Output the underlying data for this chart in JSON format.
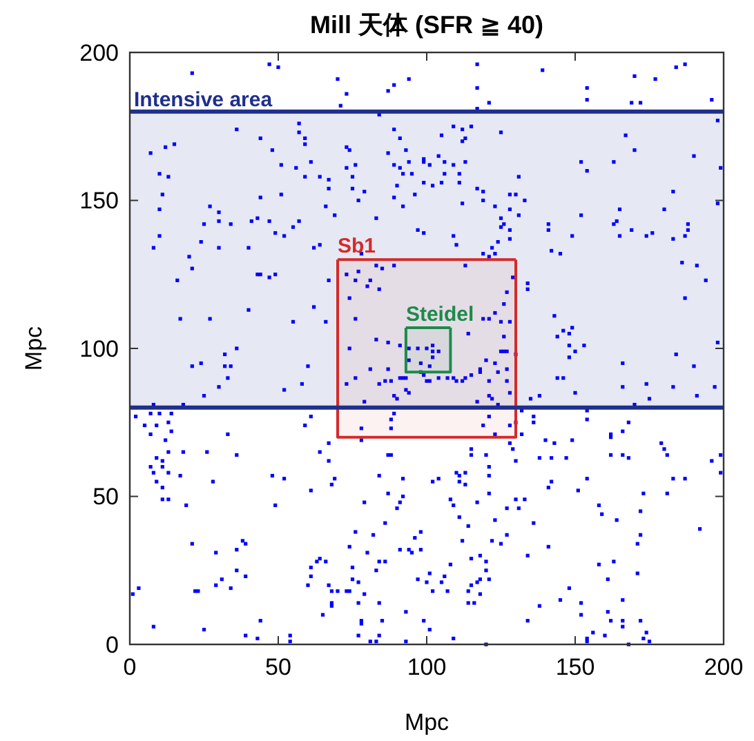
{
  "chart_data": {
    "type": "scatter",
    "title": "Mill 天体  (SFR ≧ 40)",
    "xlabel": "Mpc",
    "ylabel": "Mpc",
    "xlim": [
      0,
      200
    ],
    "ylim": [
      0,
      200
    ],
    "xticks": [
      0,
      50,
      100,
      150,
      200
    ],
    "yticks": [
      0,
      50,
      100,
      150,
      200
    ],
    "marker": "square",
    "line_style": "solid",
    "bands": [
      {
        "axis": "y",
        "from": 80,
        "to": 180,
        "label": "Intensive area",
        "color": "#e6e9f3"
      }
    ],
    "ref_lines": [
      {
        "axis": "y",
        "value": 80,
        "color": "#1f2f8c"
      },
      {
        "axis": "y",
        "value": 180,
        "color": "#1f2f8c"
      }
    ],
    "series": [
      {
        "color": "#0000ff",
        "x": [
          47,
          50,
          21,
          70,
          7,
          12,
          15,
          10,
          13,
          11,
          10,
          8,
          10,
          16,
          17,
          20,
          21,
          24,
          25,
          27,
          30,
          30,
          30,
          34,
          27,
          36,
          44,
          48,
          51,
          40,
          41,
          43,
          44,
          47,
          49,
          51,
          52,
          55,
          57,
          43,
          44,
          47,
          49,
          40,
          55,
          57,
          57,
          59,
          59,
          61,
          56,
          59,
          64,
          67,
          67,
          66,
          69,
          62,
          64,
          62,
          66,
          71,
          73,
          73,
          74,
          73,
          76,
          75,
          75,
          79,
          77,
          83,
          78,
          84,
          87,
          89,
          94,
          89,
          91,
          87,
          93,
          89,
          91,
          94,
          92,
          95,
          90,
          89,
          92,
          96,
          97,
          99,
          73,
          77,
          83,
          89,
          85,
          76,
          80,
          81,
          84,
          74,
          76,
          67,
          117,
          139,
          117,
          121,
          117,
          154,
          154,
          170,
          177,
          184,
          187,
          169,
          172,
          196,
          109,
          112,
          115,
          105,
          113,
          112,
          99,
          104,
          101,
          109,
          113,
          106,
          106,
          111,
          111,
          99,
          102,
          105,
          125,
          117,
          119,
          119,
          112,
          131,
          128,
          130,
          133,
          123,
          128,
          131,
          125,
          126,
          125,
          128,
          128,
          124,
          109,
          110,
          99,
          119,
          122,
          123,
          121,
          113,
          152,
          154,
          163,
          167,
          170,
          190,
          199,
          198,
          152,
          141,
          141,
          149,
          142,
          145,
          165,
          164,
          163,
          169,
          165,
          174,
          176,
          180,
          183,
          188,
          188,
          187,
          183,
          198,
          186,
          191,
          194,
          187,
          129,
          134,
          134,
          127,
          126,
          123,
          119,
          121,
          125,
          128,
          126,
          114,
          143,
          146,
          149,
          148,
          36,
          32,
          24,
          21,
          32,
          34,
          33,
          30,
          25,
          18,
          8,
          2,
          7,
          10,
          14,
          5,
          9,
          13,
          7,
          14,
          12,
          13,
          9,
          11,
          11,
          7,
          8,
          13,
          9,
          11,
          11,
          13,
          17,
          18,
          26,
          33,
          36,
          28,
          19,
          21,
          29,
          38,
          39,
          36,
          36,
          39,
          31,
          29,
          34,
          22,
          23,
          3,
          1,
          8,
          25,
          39,
          43,
          44,
          54,
          54,
          48,
          52,
          49,
          52,
          58,
          60,
          59,
          61,
          64,
          67,
          67,
          69,
          68,
          61,
          78,
          78,
          79,
          73,
          76,
          74,
          81,
          84,
          87,
          86,
          88,
          89,
          90,
          93,
          94,
          89,
          88,
          88,
          87,
          88,
          92,
          92,
          84,
          87,
          79,
          91,
          90,
          86,
          82,
          76,
          74,
          80,
          75,
          84,
          86,
          83,
          75,
          77,
          74,
          73,
          70,
          68,
          67,
          66,
          64,
          61,
          61,
          60,
          63,
          68,
          68,
          65,
          79,
          77,
          84,
          85,
          78,
          78,
          77,
          81,
          84,
          83,
          93,
          93,
          91,
          94,
          95,
          98,
          96,
          98,
          97,
          100,
          99,
          83,
          87,
          91,
          94,
          97,
          94,
          98,
          98,
          100,
          99,
          93,
          92,
          91,
          102,
          100,
          102,
          104,
          102,
          101,
          101,
          104,
          107,
          109,
          110,
          112,
          113,
          115,
          118,
          118,
          120,
          123,
          124,
          127,
          125,
          126,
          127,
          130,
          121,
          127,
          128,
          121,
          122,
          117,
          124,
          135,
          138,
          144,
          146,
          148,
          153,
          150,
          148,
          144,
          150,
          166,
          166,
          174,
          175,
          170,
          183,
          184,
          190,
          191,
          197,
          198,
          121,
          119,
          123,
          128,
          130,
          132,
          132,
          136,
          136,
          154,
          154,
          168,
          162,
          166,
          162,
          162,
          166,
          168,
          179,
          180,
          181,
          196,
          199,
          199,
          187,
          183,
          181,
          173,
          172,
          158,
          159,
          164,
          151,
          154,
          140,
          143,
          138,
          142,
          147,
          149,
          141,
          142,
          115,
          115,
          120,
          121,
          121,
          128,
          129,
          130,
          110,
          111,
          113,
          111,
          113,
          102,
          104,
          108,
          109,
          111,
          117,
          121,
          130,
          133,
          131,
          127,
          123,
          114,
          136,
          127,
          122,
          125,
          112,
          134,
          141,
          118,
          115,
          120,
          120,
          108,
          106,
          101,
          105,
          102,
          107,
          115,
          117,
          118,
          121,
          114,
          118,
          116,
          114,
          134,
          138,
          145,
          148,
          152,
          152,
          156,
          154,
          154,
          160,
          161,
          162,
          166,
          166,
          166,
          161,
          158,
          163,
          171,
          171,
          172,
          172,
          174,
          173,
          175,
          168,
          120,
          109,
          101,
          192
        ],
        "values": [
          196,
          195,
          193,
          191,
          166,
          168,
          169,
          159,
          158,
          152,
          147,
          134,
          138,
          123,
          110,
          131,
          127,
          136,
          142,
          148,
          146,
          143,
          134,
          142,
          110,
          174,
          171,
          167,
          162,
          134,
          143,
          144,
          151,
          143,
          139,
          152,
          138,
          141,
          143,
          125,
          125,
          124,
          125,
          113,
          109,
          176,
          173,
          171,
          169,
          163,
          161,
          158,
          158,
          157,
          154,
          148,
          145,
          134,
          135,
          114,
          109,
          182,
          186,
          168,
          167,
          161,
          162,
          158,
          154,
          153,
          150,
          144,
          132,
          179,
          187,
          189,
          191,
          174,
          171,
          166,
          167,
          162,
          161,
          163,
          159,
          159,
          155,
          151,
          148,
          152,
          140,
          164,
          125,
          126,
          128,
          128,
          127,
          123,
          121,
          123,
          120,
          117,
          110,
          123,
          196,
          194,
          188,
          183,
          181,
          188,
          184,
          192,
          191,
          195,
          196,
          183,
          183,
          184,
          175,
          174,
          175,
          172,
          171,
          170,
          163,
          165,
          162,
          162,
          163,
          163,
          159,
          159,
          156,
          156,
          155,
          156,
          173,
          154,
          153,
          150,
          149,
          158,
          152,
          152,
          150,
          148,
          147,
          145,
          144,
          142,
          141,
          140,
          137,
          136,
          138,
          135,
          139,
          132,
          134,
          132,
          131,
          128,
          163,
          160,
          163,
          172,
          167,
          165,
          161,
          177,
          145,
          142,
          140,
          138,
          133,
          132,
          147,
          143,
          142,
          140,
          138,
          138,
          139,
          147,
          153,
          142,
          140,
          138,
          137,
          149,
          129,
          128,
          123,
          117,
          124,
          122,
          120,
          119,
          115,
          112,
          110,
          110,
          109,
          109,
          104,
          105,
          111,
          106,
          107,
          105,
          100,
          98,
          95,
          94,
          94,
          94,
          90,
          87,
          84,
          81,
          81,
          77,
          78,
          78,
          78,
          74,
          74,
          75,
          71,
          72,
          69,
          65,
          63,
          62,
          60,
          60,
          58,
          58,
          55,
          53,
          49,
          49,
          57,
          65,
          65,
          71,
          64,
          55,
          47,
          34,
          31,
          35,
          34,
          32,
          25,
          23,
          22,
          20,
          19,
          18,
          18,
          19,
          17,
          6,
          5,
          3,
          2,
          8,
          3,
          1,
          57,
          56,
          47,
          86,
          88,
          94,
          74,
          77,
          65,
          68,
          62,
          56,
          54,
          52,
          73,
          69,
          82,
          88,
          90,
          100,
          93,
          88,
          93,
          89,
          89,
          84,
          83,
          86,
          85,
          78,
          76,
          73,
          64,
          64,
          56,
          50,
          57,
          51,
          48,
          48,
          46,
          41,
          37,
          38,
          33,
          31,
          26,
          28,
          28,
          25,
          22,
          21,
          18,
          18,
          18,
          18,
          20,
          28,
          29,
          26,
          23,
          20,
          28,
          13,
          14,
          10,
          17,
          14,
          14,
          8,
          8,
          7,
          3,
          1,
          3,
          1,
          11,
          1,
          32,
          32,
          31,
          32,
          36,
          38,
          22,
          21,
          8,
          103,
          102,
          101,
          100,
          100,
          96,
          95,
          92,
          89,
          91,
          90,
          90,
          90,
          101,
          100,
          99,
          99,
          97,
          94,
          89,
          90,
          90,
          90,
          89,
          89,
          90,
          91,
          93,
          92,
          96,
          95,
          92,
          93,
          99,
          99,
          99,
          98,
          89,
          89,
          85,
          84,
          83,
          82,
          81,
          83,
          84,
          90,
          90,
          101,
          101,
          99,
          97,
          104,
          85,
          95,
          87,
          88,
          83,
          81,
          87,
          98,
          94,
          84,
          87,
          102,
          77,
          74,
          71,
          74,
          75,
          71,
          79,
          77,
          75,
          79,
          76,
          75,
          71,
          72,
          70,
          64,
          64,
          63,
          68,
          66,
          64,
          62,
          64,
          58,
          56,
          56,
          51,
          51,
          45,
          47,
          44,
          42,
          52,
          56,
          69,
          68,
          63,
          63,
          63,
          69,
          53,
          55,
          66,
          64,
          64,
          60,
          57,
          68,
          66,
          62,
          58,
          57,
          58,
          55,
          54,
          55,
          56,
          49,
          47,
          43,
          48,
          51,
          49,
          49,
          46,
          46,
          42,
          40,
          41,
          37,
          35,
          34,
          35,
          30,
          33,
          30,
          29,
          28,
          25,
          27,
          23,
          24,
          21,
          18,
          18,
          20,
          21,
          22,
          22,
          18,
          17,
          14,
          14,
          8,
          13,
          15,
          19,
          14,
          10,
          4,
          2,
          1,
          3,
          11,
          8,
          8,
          6,
          15,
          22,
          27,
          28,
          24,
          34,
          37,
          8,
          4,
          2,
          1,
          0,
          0,
          2,
          5,
          39
        ]
      },
      {
        "type": "line",
        "name": "Sb1",
        "color": "#d42a2a",
        "marker": "none",
        "x": [
          70,
          130
        ],
        "values": [
          130,
          130
        ],
        "lower": [
          70,
          70
        ],
        "upper": [
          130,
          130
        ]
      },
      {
        "type": "line",
        "name": "Steidel",
        "color": "#1e8a4a",
        "marker": "none",
        "x": [
          93,
          108
        ],
        "values": [
          107,
          107
        ],
        "lower": [
          92,
          92
        ],
        "upper": [
          107,
          107
        ]
      }
    ]
  }
}
